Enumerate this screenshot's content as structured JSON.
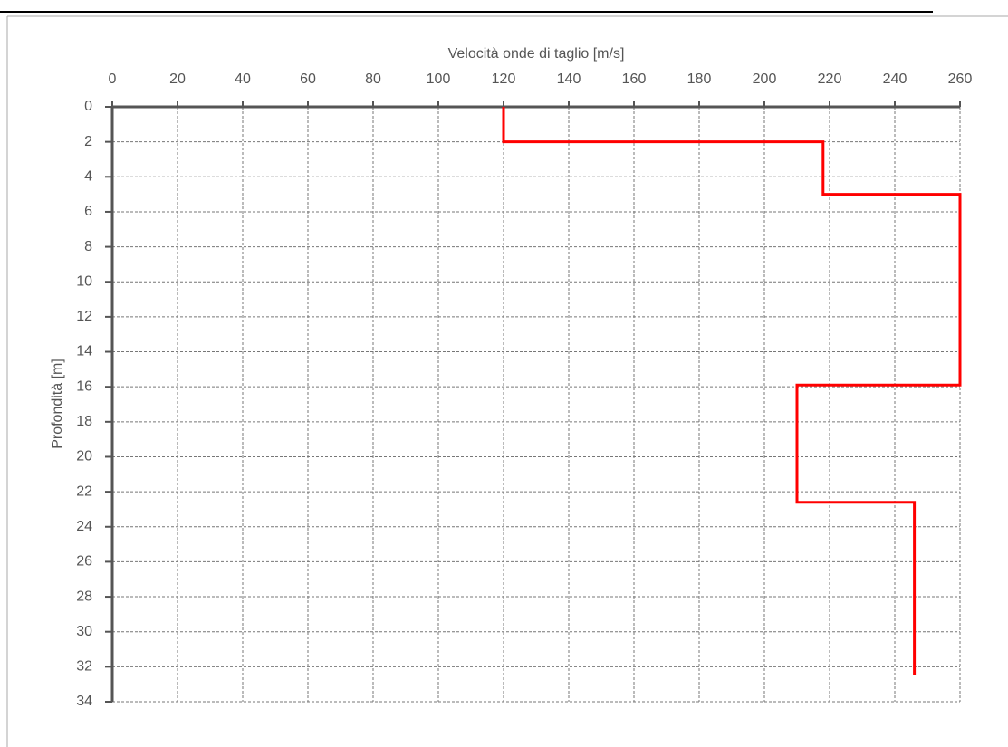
{
  "chart_data": {
    "type": "line",
    "xlabel": "Velocità onde di taglio [m/s]",
    "ylabel": "Profondità [m]",
    "x": [
      120,
      120,
      218,
      218,
      260,
      260,
      210,
      210,
      246,
      246
    ],
    "values": [
      0,
      2,
      2,
      5,
      5,
      15.9,
      15.9,
      22.6,
      22.6,
      32.5
    ],
    "color": "#ff0000",
    "xlim": [
      0,
      260
    ],
    "xticks": [
      0,
      20,
      40,
      60,
      80,
      100,
      120,
      140,
      160,
      180,
      200,
      220,
      240,
      260
    ],
    "ylim": [
      0,
      34
    ],
    "yticks": [
      0,
      2,
      4,
      6,
      8,
      10,
      12,
      14,
      16,
      18,
      20,
      22,
      24,
      26,
      28,
      30,
      32,
      34
    ],
    "y_inverted": true,
    "grid": true
  }
}
